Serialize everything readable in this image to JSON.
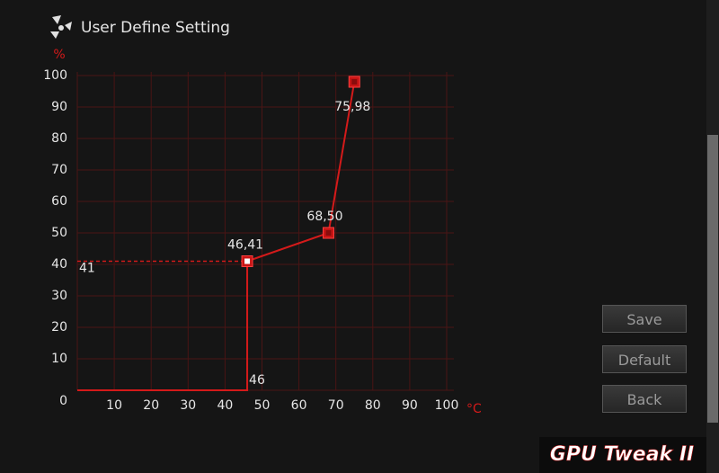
{
  "header": {
    "title": "User Define Setting"
  },
  "chart_data": {
    "type": "line",
    "x_label": "°C",
    "y_label": "%",
    "xlim": [
      0,
      100
    ],
    "ylim": [
      0,
      100
    ],
    "xticks": [
      10,
      20,
      30,
      40,
      50,
      60,
      70,
      80,
      90,
      100
    ],
    "yticks": [
      0,
      10,
      20,
      30,
      40,
      50,
      60,
      70,
      80,
      90,
      100
    ],
    "grid": true,
    "series": [
      {
        "color": "#d41a1a",
        "x": [
          0,
          46,
          46,
          68,
          75
        ],
        "values": [
          0,
          0,
          41,
          50,
          98
        ]
      }
    ],
    "points": [
      {
        "x": 46,
        "y": 41,
        "label": "46,41"
      },
      {
        "x": 68,
        "y": 50,
        "label": "68,50"
      },
      {
        "x": 75,
        "y": 98,
        "label": "75,98"
      }
    ],
    "guide": {
      "x": 46,
      "y": 41
    }
  },
  "buttons": [
    "Save",
    "Default",
    "Back"
  ],
  "brand": "GPU Tweak II"
}
